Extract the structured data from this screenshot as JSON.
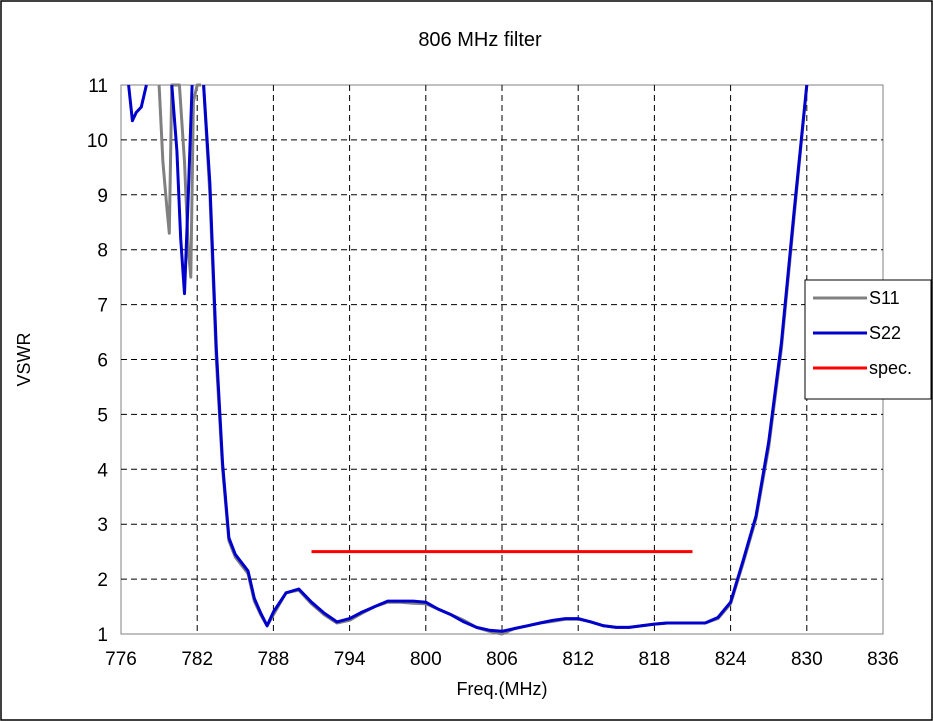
{
  "chart_data": {
    "type": "line",
    "title": "806 MHz filter",
    "xlabel": "Freq.(MHz)",
    "ylabel": "VSWR",
    "xlim": [
      776,
      836
    ],
    "ylim": [
      1,
      11
    ],
    "xticks": [
      776,
      782,
      788,
      794,
      800,
      806,
      812,
      818,
      824,
      830,
      836
    ],
    "yticks": [
      1,
      2,
      3,
      4,
      5,
      6,
      7,
      8,
      9,
      10,
      11
    ],
    "grid": true,
    "legend_position": "right",
    "series": [
      {
        "name": "S11",
        "color": "#808080",
        "x": [
          779.0,
          779.3,
          779.6,
          779.8,
          780.0,
          780.3,
          780.6,
          781.0,
          781.3,
          781.5,
          781.7,
          782.0,
          782.3
        ],
        "y": [
          11.0,
          9.6,
          8.8,
          8.3,
          11.0,
          11.0,
          11.0,
          9.6,
          8.0,
          7.5,
          10.7,
          11.0,
          11.0
        ],
        "x2": [
          782.5,
          783.0,
          783.5,
          784.0,
          784.5,
          785.0,
          786.0,
          786.5,
          787.0,
          787.5,
          788.0,
          789.0,
          790.0,
          791.0,
          792.0,
          793.0,
          794.0,
          795.0,
          796.0,
          797.0,
          798.0,
          799.0,
          800.0,
          801.0,
          802.0,
          803.0,
          804.0,
          805.0,
          806.0,
          807.0,
          808.0,
          809.0,
          810.0,
          811.0,
          812.0,
          813.0,
          814.0,
          815.0,
          816.0,
          817.0,
          818.0,
          819.0,
          820.0,
          821.0,
          822.0,
          823.0,
          824.0,
          825.0,
          826.0,
          827.0,
          828.0,
          829.0,
          830.0
        ],
        "y2": [
          11.0,
          9.0,
          6.0,
          4.0,
          2.7,
          2.4,
          2.1,
          1.6,
          1.35,
          1.15,
          1.35,
          1.75,
          1.8,
          1.55,
          1.35,
          1.2,
          1.25,
          1.38,
          1.5,
          1.58,
          1.58,
          1.56,
          1.55,
          1.45,
          1.35,
          1.25,
          1.12,
          1.05,
          1.0,
          1.1,
          1.15,
          1.2,
          1.23,
          1.27,
          1.27,
          1.22,
          1.15,
          1.12,
          1.12,
          1.15,
          1.18,
          1.2,
          1.2,
          1.2,
          1.2,
          1.28,
          1.55,
          2.3,
          3.1,
          4.4,
          6.2,
          8.6,
          11.0
        ]
      },
      {
        "name": "S22",
        "color": "#0000cc",
        "x": [
          776.6,
          776.9,
          777.2,
          777.6,
          778.0
        ],
        "y": [
          11.0,
          10.35,
          10.5,
          10.6,
          11.0
        ],
        "x2": [
          780.0,
          780.4,
          780.7,
          781.0,
          781.3,
          781.6
        ],
        "y2": [
          11.0,
          9.8,
          8.2,
          7.2,
          9.0,
          11.0
        ],
        "x3": [
          782.5,
          783.0,
          783.5,
          784.0,
          784.5,
          785.0,
          786.0,
          786.5,
          787.0,
          787.5,
          788.0,
          789.0,
          790.0,
          791.0,
          792.0,
          793.0,
          794.0,
          795.0,
          796.0,
          797.0,
          798.0,
          799.0,
          800.0,
          801.0,
          802.0,
          803.0,
          804.0,
          805.0,
          806.0,
          807.0,
          808.0,
          809.0,
          810.0,
          811.0,
          812.0,
          813.0,
          814.0,
          815.0,
          816.0,
          817.0,
          818.0,
          819.0,
          820.0,
          821.0,
          822.0,
          823.0,
          824.0,
          825.0,
          826.0,
          827.0,
          828.0,
          829.0,
          830.0
        ],
        "y3": [
          11.0,
          9.2,
          6.2,
          4.1,
          2.75,
          2.45,
          2.15,
          1.65,
          1.38,
          1.15,
          1.4,
          1.75,
          1.82,
          1.58,
          1.38,
          1.22,
          1.28,
          1.4,
          1.5,
          1.6,
          1.6,
          1.6,
          1.58,
          1.45,
          1.35,
          1.22,
          1.12,
          1.07,
          1.05,
          1.1,
          1.15,
          1.2,
          1.25,
          1.28,
          1.28,
          1.22,
          1.15,
          1.12,
          1.12,
          1.15,
          1.18,
          1.2,
          1.2,
          1.2,
          1.2,
          1.3,
          1.58,
          2.35,
          3.15,
          4.5,
          6.3,
          8.7,
          11.0
        ]
      },
      {
        "name": "spec.",
        "color": "#ff0000",
        "x": [
          791,
          821
        ],
        "y": [
          2.5,
          2.5
        ]
      }
    ]
  }
}
